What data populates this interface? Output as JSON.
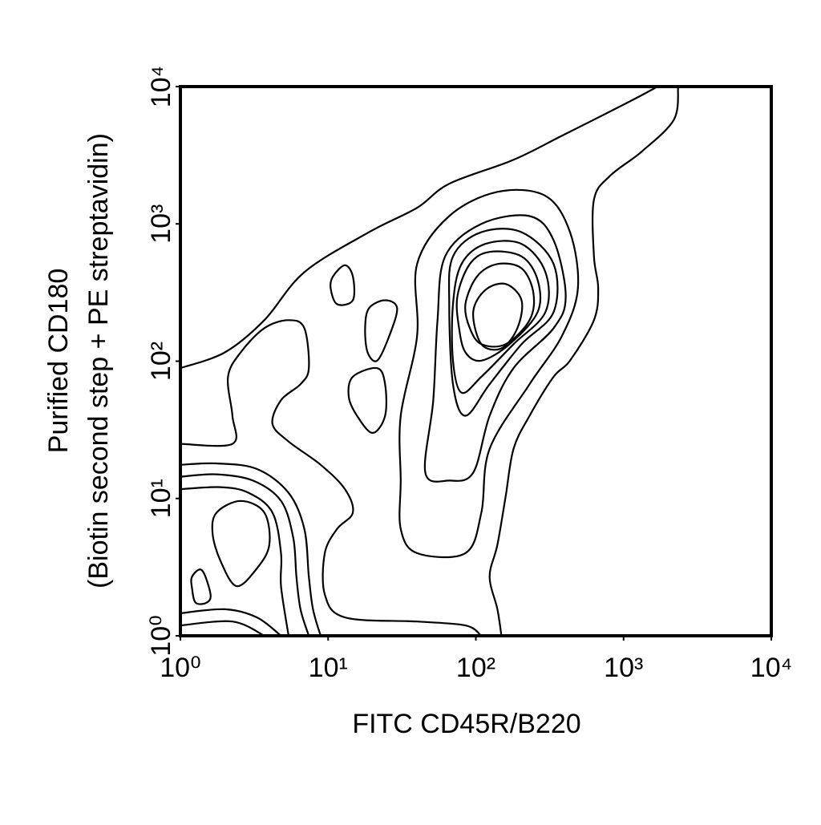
{
  "chart_data": {
    "type": "contour",
    "xlabel": "FITC CD45R/B220",
    "ylabel": [
      "Purified CD180",
      "(Biotin second step + PE streptavidin)"
    ],
    "xscale": "log",
    "yscale": "log",
    "xlim": [
      1,
      10000
    ],
    "ylim": [
      1,
      10000
    ],
    "xticks": [
      {
        "value": 1,
        "label": "10⁰"
      },
      {
        "value": 10,
        "label": "10¹"
      },
      {
        "value": 100,
        "label": "10²"
      },
      {
        "value": 1000,
        "label": "10³"
      },
      {
        "value": 10000,
        "label": "10⁴"
      }
    ],
    "yticks": [
      {
        "value": 1,
        "label": "10⁰"
      },
      {
        "value": 10,
        "label": "10¹"
      },
      {
        "value": 100,
        "label": "10²"
      },
      {
        "value": 1000,
        "label": "10³"
      },
      {
        "value": 10000,
        "label": "10⁴"
      }
    ],
    "color": "#000000",
    "contours": [
      {
        "closed": false,
        "x": [
          1,
          2.0,
          3.7,
          6.9,
          18.9,
          40,
          66,
          180,
          382,
          1040,
          1700
        ],
        "y": [
          89,
          116,
          199,
          445,
          870,
          1310,
          1960,
          2930,
          4380,
          7550,
          10000
        ]
      },
      {
        "closed": false,
        "x": [
          2340,
          2190,
          1330,
          810,
          630,
          630,
          673,
          630,
          434,
          336,
          231,
          180,
          159,
          140,
          124,
          140,
          149
        ],
        "y": [
          10000,
          5740,
          3370,
          2240,
          1500,
          580,
          340,
          199,
          101,
          77,
          40,
          23,
          10.3,
          4.6,
          2.7,
          1.56,
          1
        ]
      },
      {
        "closed": false,
        "x": [
          1,
          2.25,
          2.25,
          2.1,
          2.56,
          3.7,
          5.4,
          6.9,
          7.4,
          6.5,
          4.8,
          4.2,
          5.4,
          8.9,
          13,
          14.7,
          11.5,
          9.5,
          9.5,
          13,
          40,
          85,
          109
        ],
        "y": [
          25,
          25,
          40,
          77,
          116,
          174,
          199,
          174,
          89,
          68,
          52,
          35,
          26,
          17.6,
          11.7,
          7.9,
          6.0,
          4.0,
          2.0,
          1.36,
          1.27,
          1.19,
          1
        ]
      },
      {
        "closed": true,
        "x": [
          31,
          31,
          40,
          40,
          66,
          140,
          296,
          434,
          491,
          382,
          231,
          124,
          109,
          85,
          40,
          31
        ],
        "y": [
          13.5,
          40,
          152,
          510,
          1140,
          1710,
          1600,
          870,
          340,
          152,
          68,
          23,
          7.9,
          4.0,
          4.0,
          6.0
        ]
      },
      {
        "closed": true,
        "x": [
          45.5,
          51.5,
          55,
          62,
          109,
          231,
          336,
          406,
          336,
          180,
          124,
          96,
          66
        ],
        "y": [
          15.4,
          52,
          199,
          580,
          1000,
          1140,
          760,
          297,
          174,
          89,
          40,
          15.4,
          13.5
        ]
      },
      {
        "closed": true,
        "x": [
          66,
          70,
          109,
          204,
          336,
          336,
          204,
          124,
          85,
          70
        ],
        "y": [
          260,
          580,
          870,
          870,
          510,
          228,
          133,
          68,
          40,
          68
        ]
      },
      {
        "closed": true,
        "x": [
          70,
          80,
          116,
          204,
          296,
          296,
          180,
          109,
          80,
          70
        ],
        "y": [
          260,
          510,
          715,
          715,
          445,
          228,
          133,
          77,
          59,
          101
        ]
      },
      {
        "closed": true,
        "x": [
          75,
          91,
          124,
          204,
          262,
          262,
          169,
          109,
          85,
          77
        ],
        "y": [
          297,
          510,
          625,
          580,
          390,
          228,
          133,
          101,
          116,
          174
        ]
      },
      {
        "closed": true,
        "x": [
          85,
          102,
          140,
          204,
          245,
          231,
          159,
          109,
          91
        ],
        "y": [
          260,
          415,
          510,
          475,
          316,
          199,
          133,
          133,
          174
        ]
      },
      {
        "closed": true,
        "x": [
          96,
          116,
          159,
          204,
          191,
          149,
          109
        ],
        "y": [
          228,
          330,
          365,
          278,
          174,
          124,
          133
        ]
      },
      {
        "closed": true,
        "x": [
          10.8,
          13,
          14.7,
          14.7,
          11.5,
          10.4
        ],
        "y": [
          415,
          500,
          415,
          278,
          260,
          340
        ]
      },
      {
        "closed": true,
        "x": [
          18.9,
          24.3,
          29.3,
          25.9,
          21.5,
          18.5,
          17.8
        ],
        "y": [
          243,
          278,
          243,
          152,
          101,
          116,
          174
        ]
      },
      {
        "closed": true,
        "x": [
          14.7,
          21.5,
          24.3,
          24.3,
          20,
          15.7,
          13.8
        ],
        "y": [
          77,
          89,
          68,
          40,
          30,
          40,
          55
        ]
      },
      {
        "closed": false,
        "x": [
          1,
          1.76,
          3.3,
          5.4,
          6.9,
          7.4,
          7.9,
          8.9
        ],
        "y": [
          17.6,
          18,
          16.4,
          11,
          6.0,
          2.7,
          1.56,
          1
        ]
      },
      {
        "closed": false,
        "x": [
          1,
          1.76,
          3.1,
          4.8,
          5.8,
          6.1,
          6.5,
          7.4
        ],
        "y": [
          14.4,
          15,
          13.5,
          9.6,
          5.2,
          2.7,
          1.56,
          1
        ]
      },
      {
        "closed": false,
        "x": [
          1,
          1.87,
          2.9,
          4.2,
          4.8,
          4.8,
          5.4
        ],
        "y": [
          11.7,
          12.1,
          11,
          7.9,
          4.0,
          2.3,
          1
        ]
      },
      {
        "closed": false,
        "x": [
          1,
          2.0,
          3.3,
          4.8
        ],
        "y": [
          1.46,
          1.56,
          1.36,
          1
        ]
      },
      {
        "closed": false,
        "x": [
          1,
          2.25,
          3.7
        ],
        "y": [
          1.19,
          1.27,
          1
        ]
      },
      {
        "closed": true,
        "x": [
          1.76,
          2.56,
          3.7,
          4.0,
          3.3,
          2.4,
          1.87,
          1.65
        ],
        "y": [
          7.9,
          9.6,
          7.9,
          4.6,
          3.1,
          2.3,
          3.5,
          5.6
        ]
      },
      {
        "closed": true,
        "x": [
          1.2,
          1.4,
          1.6,
          1.5,
          1.27,
          1.2
        ],
        "y": [
          2.7,
          3.0,
          2.0,
          1.74,
          1.74,
          2.2
        ]
      }
    ]
  }
}
